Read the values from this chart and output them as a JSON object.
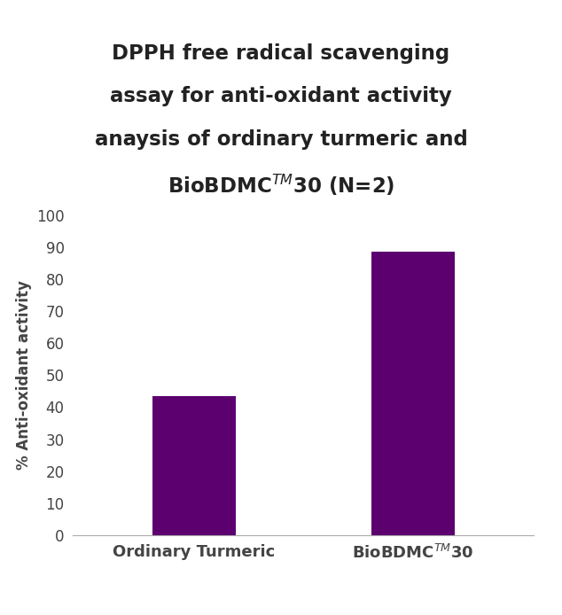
{
  "categories": [
    "Ordinary Turmeric",
    "BioBDMC$^{TM}$30"
  ],
  "values": [
    43.5,
    88.5
  ],
  "bar_color": "#5c0070",
  "title_text": "DPPH free radical scavenging\nassay for anti-oxidant activity\nanaysis of ordinary turmeric and\nBioBDMC$^{TM}$30 (N=2)",
  "ylabel": "% Anti-oxidant activity",
  "ylim": [
    0,
    100
  ],
  "yticks": [
    0,
    10,
    20,
    30,
    40,
    50,
    60,
    70,
    80,
    90,
    100
  ],
  "bar_width": 0.38,
  "background_color": "#ffffff",
  "title_fontsize": 16.5,
  "tick_fontsize": 12,
  "ylabel_fontsize": 12,
  "xlabel_fontsize": 13,
  "title_color": "#222222",
  "tick_color": "#444444"
}
